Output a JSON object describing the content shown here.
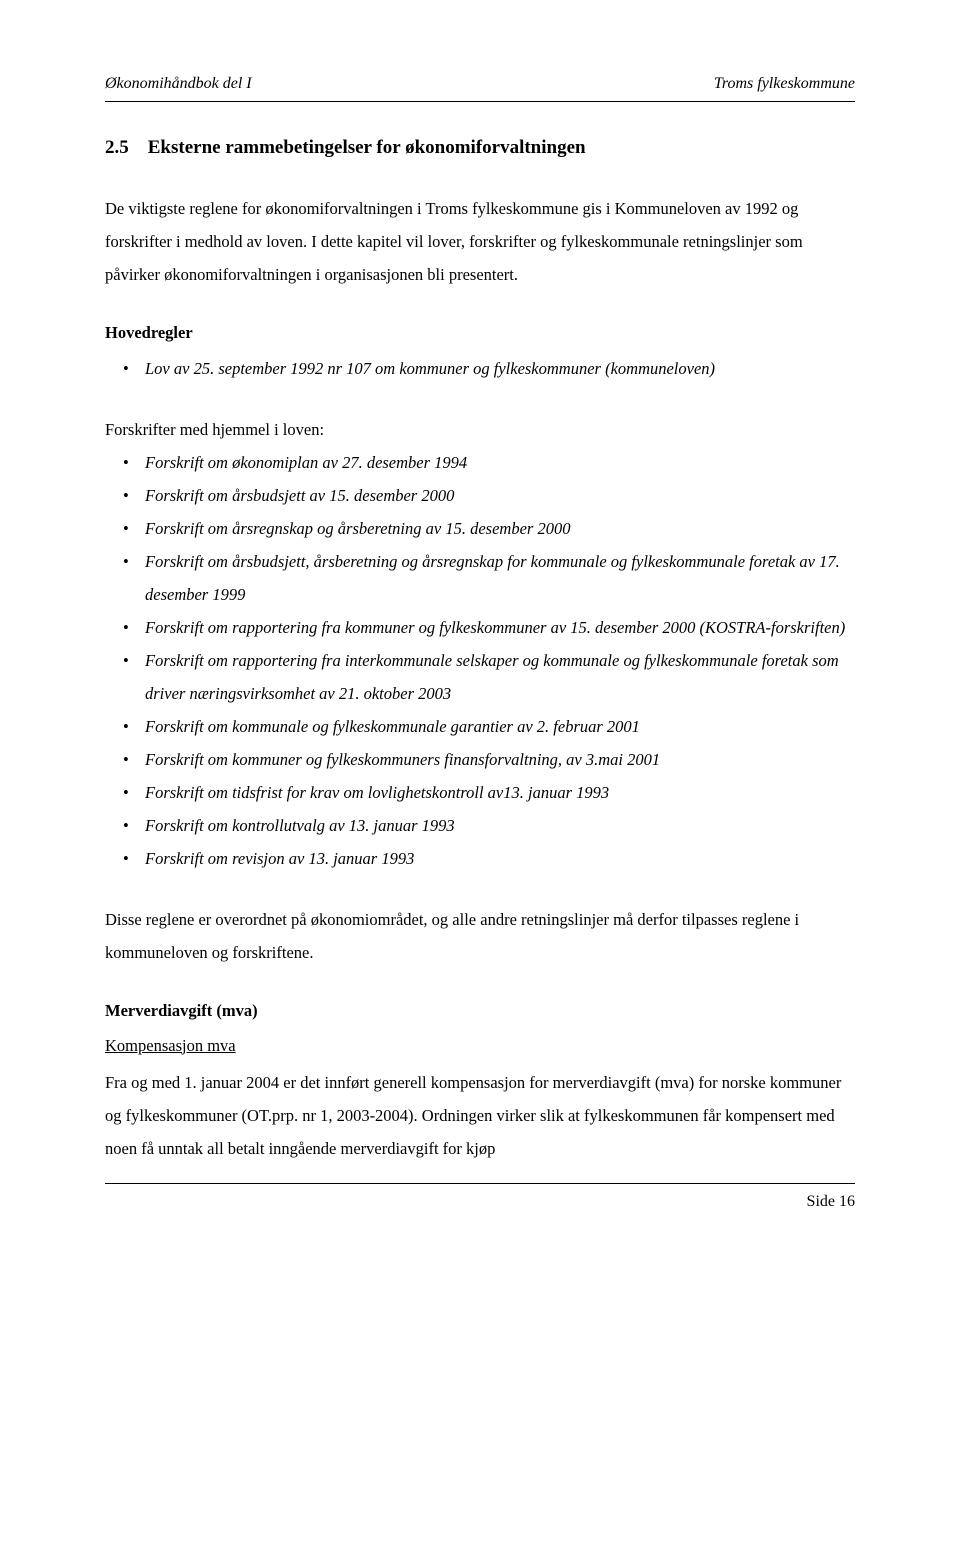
{
  "header": {
    "left": "Økonomihåndbok del I",
    "right": "Troms fylkeskommune"
  },
  "section": {
    "number": "2.5",
    "title": "Eksterne rammebetingelser for økonomiforvaltningen"
  },
  "para1": "De viktigste reglene for økonomiforvaltningen i Troms fylkeskommune gis i Kommuneloven av 1992 og forskrifter i medhold av loven. I dette kapitel vil lover, forskrifter og fylkeskommunale retningslinjer som påvirker økonomiforvaltningen i organisasjonen bli presentert.",
  "hovedregler": {
    "heading": "Hovedregler",
    "items": [
      "Lov av 25. september 1992 nr 107 om kommuner og fylkeskommuner (kommuneloven)"
    ]
  },
  "forskrifter": {
    "intro": "Forskrifter med hjemmel i loven:",
    "items": [
      "Forskrift om økonomiplan av 27. desember 1994",
      "Forskrift om årsbudsjett av 15. desember 2000",
      "Forskrift om årsregnskap og årsberetning av 15. desember 2000",
      "Forskrift om årsbudsjett, årsberetning og årsregnskap for kommunale og fylkeskommunale foretak av 17. desember 1999",
      "Forskrift om rapportering fra kommuner og fylkeskommuner av 15. desember 2000 (KOSTRA-forskriften)",
      "Forskrift om rapportering fra interkommunale selskaper og kommunale og fylkeskommunale foretak som driver næringsvirksomhet av 21. oktober 2003",
      "Forskrift om kommunale og fylkeskommunale garantier av 2. februar 2001",
      "Forskrift om kommuner og fylkeskommuners finansforvaltning, av 3.mai 2001",
      "Forskrift om tidsfrist for krav om lovlighetskontroll av13. januar 1993",
      "Forskrift om kontrollutvalg av 13. januar 1993",
      "Forskrift om revisjon av 13. januar 1993"
    ]
  },
  "para2": "Disse reglene er overordnet på økonomiområdet, og alle andre retningslinjer må derfor tilpasses reglene i kommuneloven og forskriftene.",
  "mva": {
    "heading": "Merverdiavgift (mva)",
    "subheading": "Kompensasjon mva",
    "body": "Fra og med 1. januar 2004 er det innført generell kompensasjon for merverdiavgift (mva) for norske kommuner og fylkeskommuner (OT.prp. nr 1, 2003-2004). Ordningen virker slik at fylkeskommunen får kompensert med noen få unntak all betalt inngående merverdiavgift for kjøp"
  },
  "footer": {
    "label": "Side",
    "page": "16"
  }
}
